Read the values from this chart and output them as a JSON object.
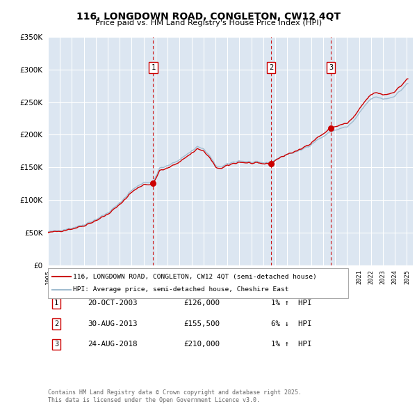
{
  "title": "116, LONGDOWN ROAD, CONGLETON, CW12 4QT",
  "subtitle": "Price paid vs. HM Land Registry's House Price Index (HPI)",
  "ylim": [
    0,
    350000
  ],
  "xlim_start": 1995.0,
  "xlim_end": 2025.5,
  "background_color": "#ffffff",
  "plot_bg_color": "#dce6f1",
  "grid_color": "#ffffff",
  "legend_line1": "116, LONGDOWN ROAD, CONGLETON, CW12 4QT (semi-detached house)",
  "legend_line2": "HPI: Average price, semi-detached house, Cheshire East",
  "sale_color": "#cc0000",
  "hpi_color": "#a0bcd0",
  "transactions": [
    {
      "num": 1,
      "date": "20-OCT-2003",
      "price": 126000,
      "pct": "1%",
      "dir": "↑",
      "x": 2003.8
    },
    {
      "num": 2,
      "date": "30-AUG-2013",
      "price": 155500,
      "pct": "6%",
      "dir": "↓",
      "x": 2013.66
    },
    {
      "num": 3,
      "date": "24-AUG-2018",
      "price": 210000,
      "pct": "1%",
      "dir": "↑",
      "x": 2018.65
    }
  ],
  "footer_line1": "Contains HM Land Registry data © Crown copyright and database right 2025.",
  "footer_line2": "This data is licensed under the Open Government Licence v3.0."
}
